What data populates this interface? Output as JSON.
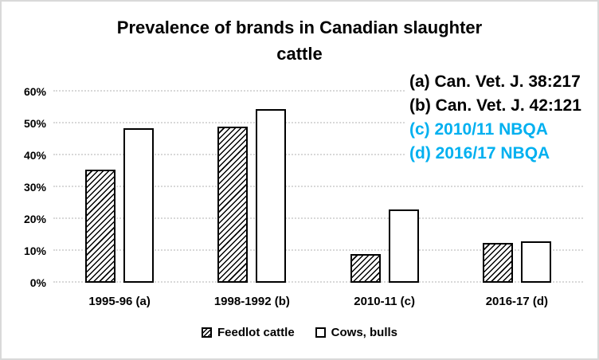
{
  "title": {
    "line1": "Prevalence of brands in Canadian slaughter",
    "line2": "cattle"
  },
  "annotations": [
    {
      "text": "(a) Can. Vet. J. 38:217",
      "color": "#000000"
    },
    {
      "text": "(b) Can. Vet. J. 42:121",
      "color": "#000000"
    },
    {
      "text": "(c) 2010/11 NBQA",
      "color": "#00b0f0"
    },
    {
      "text": "(d) 2016/17 NBQA",
      "color": "#00b0f0"
    }
  ],
  "chart_data": {
    "type": "bar",
    "title": "Prevalence of brands in Canadian slaughter cattle",
    "categories": [
      "1995-96 (a)",
      "1998-1992 (b)",
      "2010-11 (c)",
      "2016-17 (d)"
    ],
    "series": [
      {
        "name": "Feedlot cattle",
        "style": "hatched",
        "values": [
          35.5,
          49,
          9,
          12.5
        ]
      },
      {
        "name": "Cows, bulls",
        "style": "plain",
        "values": [
          48.5,
          54.5,
          23,
          13
        ]
      }
    ],
    "xlabel": "",
    "ylabel": "",
    "ylim": [
      0,
      60
    ],
    "ytick_step": 10,
    "ytick_labels": [
      "0%",
      "10%",
      "20%",
      "30%",
      "40%",
      "50%",
      "60%"
    ],
    "grid": true,
    "legend_position": "bottom"
  },
  "colors": {
    "accent_blue": "#00b0f0",
    "gridline": "#d8d8d8",
    "bar_border": "#000000",
    "frame_border": "#d9d9d9"
  }
}
